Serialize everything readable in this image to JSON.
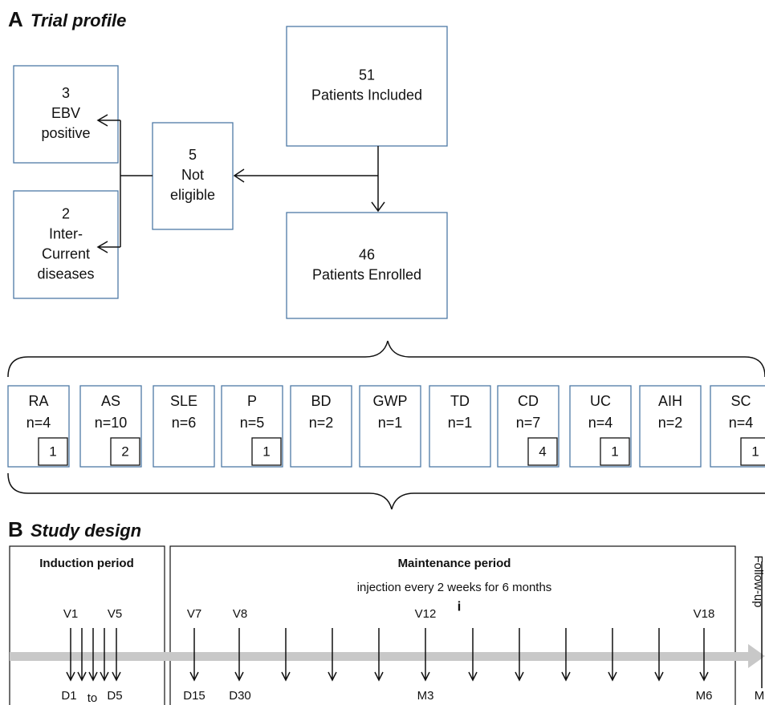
{
  "panel_a": {
    "label": "A",
    "title": "Trial profile",
    "included": {
      "lines": [
        "51",
        "Patients Included"
      ]
    },
    "not_eligible": {
      "lines": [
        "5",
        "Not",
        "eligible"
      ]
    },
    "ebv": {
      "lines": [
        "3",
        "EBV",
        "positive"
      ]
    },
    "intercurrent": {
      "lines": [
        "2",
        "Inter-",
        "Current",
        "diseases"
      ]
    },
    "enrolled": {
      "lines": [
        "46",
        "Patients Enrolled"
      ]
    },
    "groups": [
      {
        "name": "RA",
        "n": "n=4",
        "sub": "1"
      },
      {
        "name": "AS",
        "n": "n=10",
        "sub": "2"
      },
      {
        "name": "SLE",
        "n": "n=6"
      },
      {
        "name": "P",
        "n": "n=5",
        "sub": "1"
      },
      {
        "name": "BD",
        "n": "n=2"
      },
      {
        "name": "GWP",
        "n": "n=1"
      },
      {
        "name": "TD",
        "n": "n=1"
      },
      {
        "name": "CD",
        "n": "n=7",
        "sub": "4"
      },
      {
        "name": "UC",
        "n": "n=4",
        "sub": "1"
      },
      {
        "name": "AIH",
        "n": "n=2"
      },
      {
        "name": "SC",
        "n": "n=4",
        "sub": "1"
      }
    ]
  },
  "panel_b": {
    "label": "B",
    "title": "Study design",
    "induction": "Induction period",
    "maintenance": "Maintenance period",
    "note": "injection every 2 weeks for 6 months",
    "marker": "i",
    "follow_up": "Follow-up",
    "top_labels": [
      "V1",
      "V5",
      "V7",
      "V8",
      "V12",
      "V18"
    ],
    "bottom_labels": [
      "D1",
      "to",
      "D5",
      "D15",
      "D30",
      "M3",
      "M6",
      "M"
    ]
  }
}
